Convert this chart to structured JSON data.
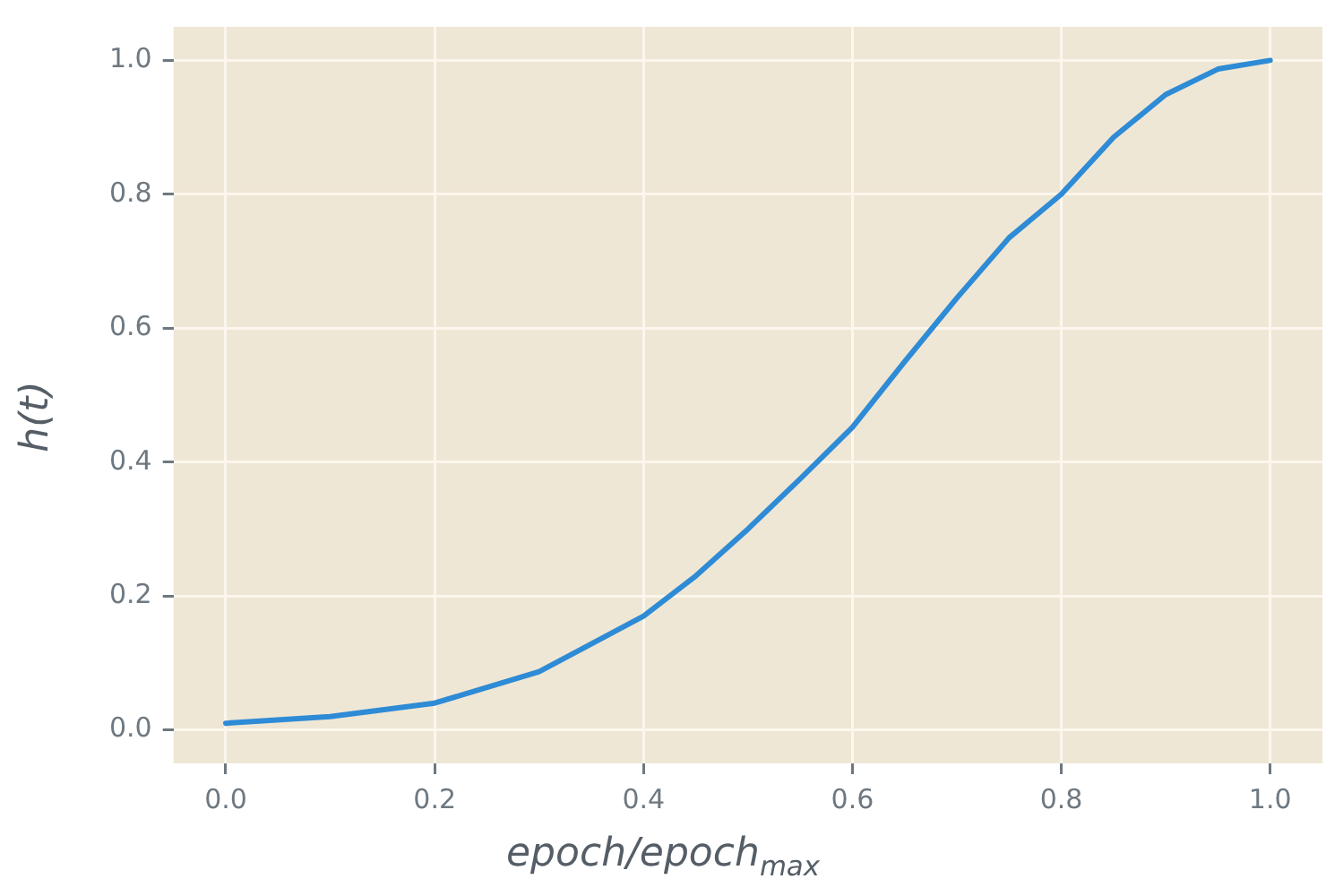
{
  "chart_data": {
    "type": "line",
    "xlabel": "epoch/epoch$_{max}$",
    "ylabel": "h(t)",
    "series": [
      {
        "color": "#2e8bd6",
        "x": [
          0,
          0.1,
          0.2,
          0.3,
          0.4,
          0.45,
          0.5,
          0.55,
          0.6,
          0.65,
          0.7,
          0.75,
          0.8,
          0.85,
          0.9,
          0.95,
          1.0
        ],
        "values": [
          0.01,
          0.02,
          0.04,
          0.087,
          0.17,
          0.23,
          0.3,
          0.375,
          0.452,
          0.55,
          0.645,
          0.735,
          0.8,
          0.885,
          0.949,
          0.987,
          1.0
        ]
      }
    ],
    "xlim": [
      -0.05,
      1.05
    ],
    "ylim": [
      -0.05,
      1.05
    ],
    "xticks": [
      {
        "value": 0,
        "label": "0.0"
      },
      0.2,
      0.4,
      0.6,
      0.8,
      {
        "value": 1,
        "label": "1.0"
      }
    ],
    "yticks": [
      {
        "value": 0,
        "label": "0.0"
      },
      0.2,
      0.4,
      0.6,
      0.8,
      {
        "value": 1,
        "label": "1.0"
      }
    ],
    "grid": true,
    "legend": false,
    "marker": "none",
    "line_style": "solid"
  }
}
